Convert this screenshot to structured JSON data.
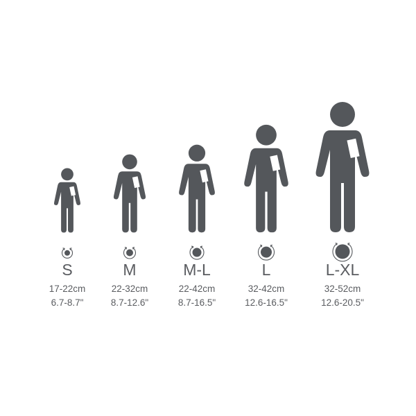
{
  "colors": {
    "figure": "#54575b",
    "text": "#5a5c60",
    "patch": "#ffffff"
  },
  "icons": {
    "figure": "person-with-arm-patch-icon",
    "circumference": "rotation-circle-icon"
  },
  "sizes": [
    {
      "label": "S",
      "cm": "17-22cm",
      "inch": "6.7-8.7\""
    },
    {
      "label": "M",
      "cm": "22-32cm",
      "inch": "8.7-12.6\""
    },
    {
      "label": "M-L",
      "cm": "22-42cm",
      "inch": "8.7-16.5\""
    },
    {
      "label": "L",
      "cm": "32-42cm",
      "inch": "12.6-16.5\""
    },
    {
      "label": "L-XL",
      "cm": "32-52cm",
      "inch": "12.6-20.5\""
    }
  ]
}
